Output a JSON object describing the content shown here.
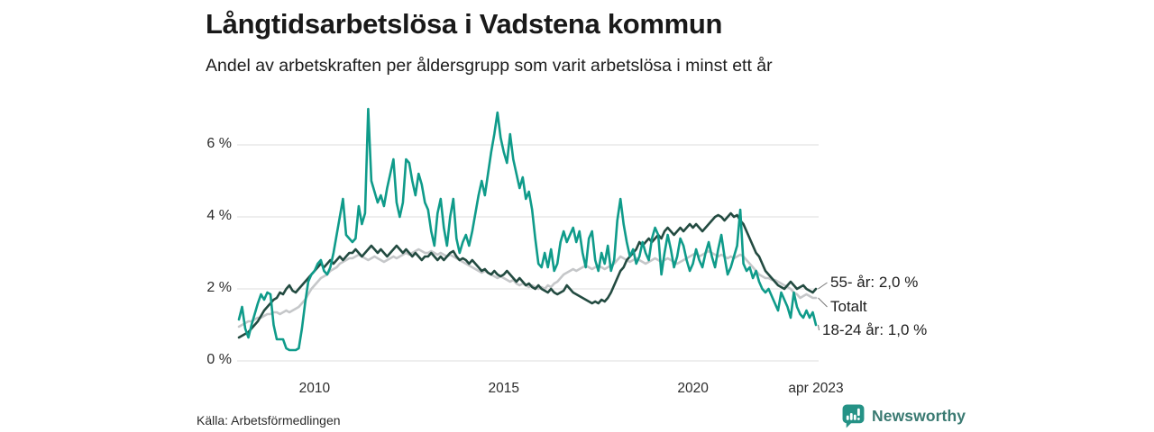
{
  "header": {
    "title": "Långtidsarbetslösa i Vadstena kommun",
    "subtitle": "Andel av arbetskraften per åldersgrupp som varit arbetslösa i minst ett år"
  },
  "chart_data": {
    "type": "line",
    "title": "Långtidsarbetslösa i Vadstena kommun",
    "subtitle": "Andel av arbetskraften per åldersgrupp som varit arbetslösa i minst ett år",
    "x_unit": "month",
    "x_start": "2008-01",
    "x_end": "2023-04",
    "n_points": 184,
    "x_tick_labels": [
      "2010",
      "2015",
      "2020",
      "apr 2023"
    ],
    "x_tick_month_index": [
      24,
      84,
      144,
      183
    ],
    "y_tick_labels": [
      "0 %",
      "2 %",
      "4 %",
      "6 %"
    ],
    "y_tick_values": [
      0,
      2,
      4,
      6
    ],
    "ylim": [
      0,
      7.3
    ],
    "grid": "horizontal",
    "legend_position": "right-end-labels",
    "series": [
      {
        "name": "Totalt",
        "color": "#c5c7c9",
        "values": [
          0.95,
          1.0,
          1.05,
          1.1,
          1.1,
          1.15,
          1.2,
          1.2,
          1.25,
          1.3,
          1.3,
          1.35,
          1.35,
          1.3,
          1.35,
          1.4,
          1.35,
          1.4,
          1.45,
          1.5,
          1.6,
          1.7,
          1.85,
          2.0,
          2.1,
          2.2,
          2.3,
          2.35,
          2.4,
          2.5,
          2.55,
          2.6,
          2.7,
          2.75,
          2.8,
          2.85,
          2.85,
          2.9,
          2.95,
          2.9,
          2.85,
          2.8,
          2.85,
          2.9,
          2.85,
          2.8,
          2.75,
          2.8,
          2.85,
          2.9,
          2.85,
          2.9,
          2.95,
          3.0,
          2.95,
          3.0,
          3.05,
          3.1,
          3.05,
          3.0,
          3.0,
          3.05,
          3.0,
          2.95,
          3.0,
          2.95,
          2.9,
          2.95,
          2.9,
          2.85,
          2.8,
          2.75,
          2.7,
          2.65,
          2.6,
          2.55,
          2.5,
          2.45,
          2.5,
          2.45,
          2.4,
          2.35,
          2.3,
          2.35,
          2.3,
          2.25,
          2.2,
          2.25,
          2.15,
          2.1,
          2.15,
          2.1,
          2.05,
          2.1,
          2.05,
          2.0,
          2.05,
          2.0,
          2.1,
          2.05,
          2.15,
          2.2,
          2.3,
          2.4,
          2.45,
          2.5,
          2.55,
          2.5,
          2.55,
          2.6,
          2.65,
          2.6,
          2.55,
          2.6,
          2.65,
          2.6,
          2.55,
          2.6,
          2.65,
          2.7,
          2.8,
          2.9,
          2.85,
          2.8,
          2.75,
          2.8,
          2.85,
          2.8,
          2.75,
          2.7,
          2.75,
          2.8,
          2.85,
          2.8,
          2.75,
          2.8,
          2.85,
          2.8,
          2.75,
          2.7,
          2.75,
          2.8,
          2.85,
          2.9,
          2.95,
          3.0,
          2.9,
          2.95,
          3.0,
          3.05,
          3.0,
          2.95,
          2.9,
          2.95,
          2.9,
          2.85,
          2.9,
          2.85,
          2.9,
          2.95,
          2.9,
          2.8,
          2.7,
          2.6,
          2.5,
          2.4,
          2.35,
          2.3,
          2.3,
          2.25,
          2.25,
          2.2,
          2.15,
          2.1,
          2.05,
          2.0,
          1.9,
          1.85,
          1.75,
          1.8,
          1.85,
          1.8,
          1.75,
          1.75
        ]
      },
      {
        "name": "55- år",
        "color": "#234b41",
        "values": [
          0.65,
          0.7,
          0.75,
          0.8,
          0.9,
          1.0,
          1.1,
          1.25,
          1.4,
          1.5,
          1.6,
          1.7,
          1.75,
          1.9,
          1.85,
          2.0,
          2.1,
          1.95,
          1.9,
          2.0,
          2.1,
          2.2,
          2.3,
          2.4,
          2.5,
          2.6,
          2.7,
          2.6,
          2.7,
          2.8,
          2.7,
          2.8,
          2.9,
          2.8,
          2.9,
          3.0,
          3.0,
          3.1,
          3.0,
          2.9,
          3.0,
          3.1,
          3.2,
          3.1,
          3.0,
          3.1,
          3.0,
          2.9,
          3.0,
          3.1,
          3.2,
          3.1,
          3.0,
          3.1,
          3.0,
          2.9,
          3.0,
          2.9,
          2.8,
          2.9,
          2.9,
          3.0,
          2.9,
          2.8,
          2.9,
          2.8,
          2.9,
          3.0,
          3.05,
          2.9,
          2.8,
          2.85,
          2.8,
          2.7,
          2.8,
          2.7,
          2.6,
          2.5,
          2.55,
          2.45,
          2.4,
          2.5,
          2.4,
          2.35,
          2.4,
          2.5,
          2.4,
          2.3,
          2.2,
          2.3,
          2.2,
          2.1,
          2.15,
          2.05,
          2.0,
          2.1,
          2.0,
          1.95,
          1.9,
          2.0,
          1.9,
          1.85,
          1.9,
          1.95,
          2.1,
          2.0,
          1.9,
          1.85,
          1.8,
          1.75,
          1.7,
          1.65,
          1.6,
          1.65,
          1.6,
          1.7,
          1.65,
          1.75,
          1.9,
          2.1,
          2.3,
          2.5,
          2.6,
          2.8,
          2.9,
          3.0,
          3.1,
          3.3,
          3.2,
          3.3,
          3.4,
          3.3,
          3.4,
          3.5,
          3.4,
          3.6,
          3.7,
          3.6,
          3.5,
          3.6,
          3.7,
          3.6,
          3.7,
          3.8,
          3.7,
          3.8,
          3.7,
          3.6,
          3.7,
          3.8,
          3.9,
          4.0,
          4.05,
          4.0,
          3.9,
          4.0,
          4.1,
          4.0,
          4.05,
          3.9,
          3.8,
          3.6,
          3.4,
          3.2,
          3.0,
          2.9,
          2.7,
          2.5,
          2.4,
          2.3,
          2.2,
          2.1,
          2.05,
          2.0,
          2.1,
          2.2,
          2.1,
          2.0,
          2.05,
          2.1,
          2.0,
          1.95,
          1.9,
          2.0
        ]
      },
      {
        "name": "18-24 år",
        "color": "#0f9b8a",
        "values": [
          1.15,
          1.5,
          0.9,
          0.65,
          1.0,
          1.3,
          1.6,
          1.85,
          1.7,
          1.9,
          1.85,
          1.0,
          0.6,
          0.6,
          0.6,
          0.35,
          0.3,
          0.3,
          0.3,
          0.35,
          0.9,
          1.6,
          2.2,
          2.4,
          2.5,
          2.7,
          2.8,
          2.5,
          2.4,
          2.6,
          3.0,
          3.5,
          4.0,
          4.5,
          3.5,
          3.4,
          3.3,
          3.4,
          4.3,
          3.8,
          4.1,
          7.0,
          5.0,
          4.7,
          4.4,
          4.6,
          4.3,
          4.8,
          5.2,
          5.6,
          4.4,
          4.0,
          4.4,
          5.6,
          5.5,
          5.0,
          4.6,
          5.2,
          4.9,
          4.4,
          4.2,
          3.6,
          3.2,
          4.1,
          4.5,
          3.7,
          3.2,
          4.0,
          4.5,
          3.4,
          3.0,
          3.3,
          3.5,
          3.2,
          3.6,
          4.1,
          4.6,
          5.0,
          4.6,
          5.2,
          5.8,
          6.3,
          6.9,
          6.2,
          5.8,
          5.5,
          6.3,
          5.6,
          5.2,
          4.8,
          5.1,
          4.5,
          4.7,
          4.2,
          3.4,
          2.7,
          2.6,
          3.0,
          2.6,
          3.1,
          2.5,
          2.7,
          3.3,
          3.6,
          3.3,
          3.5,
          3.7,
          3.3,
          3.6,
          3.0,
          2.6,
          3.4,
          3.6,
          2.8,
          2.5,
          3.0,
          2.7,
          3.2,
          2.5,
          2.8,
          3.9,
          4.5,
          3.8,
          3.3,
          2.9,
          3.1,
          2.7,
          2.9,
          3.3,
          3.0,
          2.8,
          3.4,
          3.7,
          3.5,
          2.4,
          3.0,
          3.5,
          3.1,
          2.6,
          2.9,
          3.4,
          3.2,
          2.8,
          2.5,
          2.7,
          3.1,
          2.8,
          2.6,
          3.0,
          3.3,
          2.9,
          2.6,
          3.1,
          3.5,
          2.9,
          2.4,
          2.6,
          2.9,
          3.2,
          4.2,
          2.7,
          2.5,
          2.6,
          2.3,
          2.5,
          2.2,
          2.0,
          1.9,
          2.0,
          1.8,
          1.6,
          1.4,
          1.9,
          1.7,
          1.5,
          1.2,
          1.9,
          1.5,
          1.3,
          1.2,
          1.4,
          1.2,
          1.35,
          1.0
        ]
      }
    ],
    "end_labels": [
      {
        "text": "55- år: 2,0 %",
        "series": "55- år"
      },
      {
        "text": "Totalt",
        "series": "Totalt"
      },
      {
        "text": "18-24 år: 1,0 %",
        "series": "18-24 år"
      }
    ]
  },
  "footer": {
    "source": "Källa: Arbetsförmedlingen",
    "logo_text": "Newsworthy"
  },
  "colors": {
    "teal_line": "#0f9b8a",
    "dark_green_line": "#234b41",
    "gray_line": "#c5c7c9",
    "gridline": "#e3e3e3",
    "connector": "#767676",
    "logo_icon": "#259286",
    "logo_text": "#3a7a72"
  }
}
